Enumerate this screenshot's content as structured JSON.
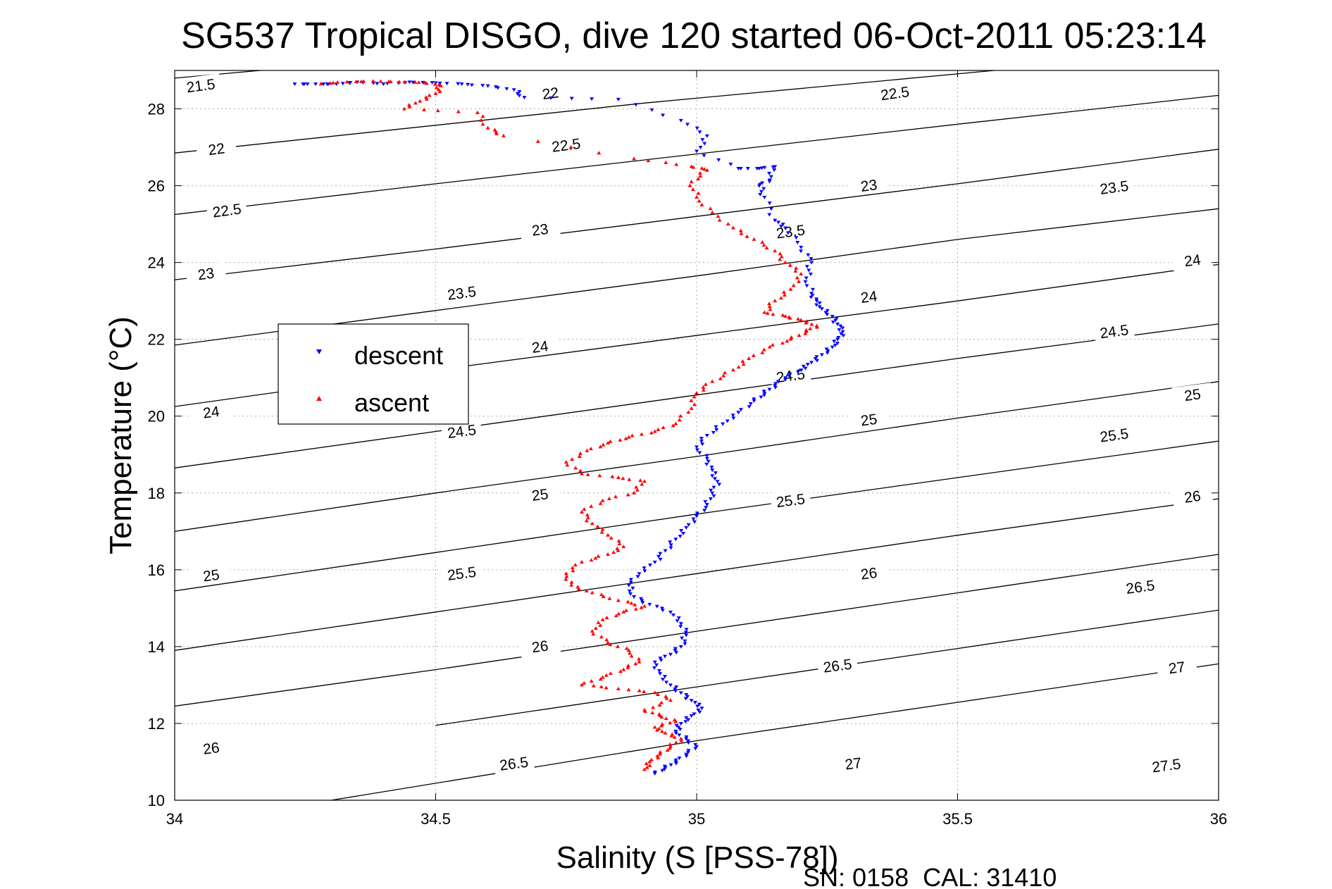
{
  "chart_data": {
    "type": "scatter",
    "title": "SG537 Tropical DISGO, dive 120 started 06-Oct-2011 05:23:14",
    "xlabel": "Salinity (S [PSS-78])",
    "ylabel": "Temperature (°C)",
    "xlim": [
      34,
      36
    ],
    "ylim": [
      10,
      29
    ],
    "xticks": [
      "34",
      "34.5",
      "35",
      "35.5",
      "36"
    ],
    "yticks": [
      "10",
      "12",
      "14",
      "16",
      "18",
      "20",
      "22",
      "24",
      "26",
      "28"
    ],
    "grid": true,
    "legend_position": "left",
    "footer": "SN: 0158  CAL: 31410",
    "colors": {
      "descent": "#0000ff",
      "ascent": "#ff0000",
      "contour": "#000000",
      "grid": "#aaaaaa"
    },
    "contours": [
      {
        "label": "21.5",
        "points": [
          [
            34.0,
            28.8
          ],
          [
            34.9,
            29.9
          ]
        ],
        "label_at": [
          [
            34.05,
            28.6
          ]
        ]
      },
      {
        "label": "22",
        "points": [
          [
            34.0,
            26.85
          ],
          [
            34.9,
            28.15
          ],
          [
            35.57,
            29.0
          ]
        ],
        "label_at": [
          [
            34.08,
            26.95
          ],
          [
            34.72,
            28.4
          ]
        ]
      },
      {
        "label": "22.5",
        "points": [
          [
            34.0,
            25.25
          ],
          [
            34.5,
            26.05
          ],
          [
            35.5,
            27.6
          ],
          [
            36.0,
            28.35
          ]
        ],
        "label_at": [
          [
            34.1,
            25.35
          ],
          [
            34.75,
            27.05
          ],
          [
            35.38,
            28.4
          ]
        ]
      },
      {
        "label": "23",
        "points": [
          [
            34.0,
            23.55
          ],
          [
            34.5,
            24.35
          ],
          [
            35.0,
            25.2
          ],
          [
            35.5,
            26.05
          ],
          [
            36.0,
            26.95
          ]
        ],
        "label_at": [
          [
            34.06,
            23.7
          ],
          [
            34.7,
            24.85
          ],
          [
            35.33,
            26.0
          ]
        ]
      },
      {
        "label": "23.5",
        "points": [
          [
            34.0,
            21.85
          ],
          [
            34.5,
            22.75
          ],
          [
            35.0,
            23.65
          ],
          [
            35.5,
            24.6
          ],
          [
            36.0,
            25.4
          ]
        ],
        "label_at": [
          [
            34.55,
            23.2
          ],
          [
            35.18,
            24.8
          ],
          [
            35.8,
            25.95
          ]
        ]
      },
      {
        "label": "24",
        "points": [
          [
            34.0,
            20.25
          ],
          [
            34.5,
            21.2
          ],
          [
            35.0,
            22.1
          ],
          [
            35.5,
            23.0
          ],
          [
            36.0,
            23.95
          ]
        ],
        "label_at": [
          [
            34.07,
            20.1
          ],
          [
            34.7,
            21.8
          ],
          [
            35.33,
            23.1
          ],
          [
            35.95,
            24.05
          ]
        ]
      },
      {
        "label": "24.5",
        "points": [
          [
            34.0,
            18.65
          ],
          [
            34.5,
            19.6
          ],
          [
            35.0,
            20.55
          ],
          [
            35.5,
            21.5
          ],
          [
            36.0,
            22.4
          ]
        ],
        "label_at": [
          [
            34.55,
            19.6
          ],
          [
            35.18,
            21.05
          ],
          [
            35.8,
            22.2
          ]
        ]
      },
      {
        "label": "25",
        "points": [
          [
            34.0,
            17.0
          ],
          [
            34.5,
            18.0
          ],
          [
            35.0,
            18.95
          ],
          [
            35.5,
            19.95
          ],
          [
            36.0,
            20.9
          ]
        ],
        "label_at": [
          [
            34.07,
            15.85
          ],
          [
            34.7,
            17.95
          ],
          [
            35.33,
            19.9
          ],
          [
            35.95,
            20.55
          ]
        ]
      },
      {
        "label": "25.5",
        "points": [
          [
            34.0,
            15.45
          ],
          [
            34.5,
            16.45
          ],
          [
            35.0,
            17.45
          ],
          [
            35.5,
            18.4
          ],
          [
            36.0,
            19.35
          ]
        ],
        "label_at": [
          [
            34.55,
            15.9
          ],
          [
            35.18,
            17.8
          ],
          [
            35.8,
            19.5
          ]
        ]
      },
      {
        "label": "26",
        "points": [
          [
            34.0,
            13.9
          ],
          [
            34.5,
            14.9
          ],
          [
            35.0,
            15.9
          ],
          [
            35.5,
            16.9
          ],
          [
            36.0,
            17.85
          ]
        ],
        "label_at": [
          [
            34.07,
            11.35
          ],
          [
            34.7,
            14.0
          ],
          [
            35.33,
            15.9
          ],
          [
            35.95,
            17.9
          ]
        ]
      },
      {
        "label": "26.5",
        "points": [
          [
            34.0,
            12.45
          ],
          [
            34.5,
            13.4
          ],
          [
            35.0,
            14.4
          ],
          [
            35.5,
            15.4
          ],
          [
            36.0,
            16.4
          ]
        ],
        "label_at": [
          [
            34.65,
            10.95
          ],
          [
            35.27,
            13.5
          ],
          [
            35.85,
            15.55
          ]
        ]
      },
      {
        "label": "27",
        "points": [
          [
            34.5,
            11.95
          ],
          [
            35.0,
            12.95
          ],
          [
            35.5,
            13.95
          ],
          [
            36.0,
            14.95
          ]
        ],
        "label_at": [
          [
            35.3,
            10.95
          ],
          [
            35.92,
            13.45
          ]
        ]
      },
      {
        "label": "27.5",
        "points": [
          [
            34.3,
            10.0
          ],
          [
            35.0,
            11.55
          ],
          [
            35.5,
            12.55
          ],
          [
            36.0,
            13.55
          ]
        ],
        "label_at": [
          [
            35.9,
            10.9
          ]
        ]
      }
    ],
    "series": [
      {
        "name": "descent",
        "points": [
          [
            34.23,
            28.65
          ],
          [
            34.27,
            28.65
          ],
          [
            34.31,
            28.65
          ],
          [
            34.35,
            28.7
          ],
          [
            34.4,
            28.65
          ],
          [
            34.45,
            28.7
          ],
          [
            34.5,
            28.68
          ],
          [
            34.55,
            28.65
          ],
          [
            34.6,
            28.6
          ],
          [
            34.65,
            28.5
          ],
          [
            34.67,
            28.3
          ],
          [
            34.85,
            28.25
          ],
          [
            34.97,
            27.7
          ],
          [
            35.02,
            27.3
          ],
          [
            35.0,
            26.9
          ],
          [
            35.08,
            26.45
          ],
          [
            35.12,
            26.45
          ],
          [
            35.15,
            26.5
          ],
          [
            35.14,
            26.15
          ],
          [
            35.12,
            26.0
          ],
          [
            35.13,
            25.7
          ],
          [
            35.15,
            25.1
          ],
          [
            35.17,
            24.9
          ],
          [
            35.2,
            24.4
          ],
          [
            35.22,
            24.0
          ],
          [
            35.21,
            23.6
          ],
          [
            35.22,
            23.2
          ],
          [
            35.23,
            23.0
          ],
          [
            35.24,
            22.8
          ],
          [
            35.26,
            22.6
          ],
          [
            35.27,
            22.4
          ],
          [
            35.28,
            22.2
          ],
          [
            35.27,
            22.0
          ],
          [
            35.26,
            21.8
          ],
          [
            35.24,
            21.6
          ],
          [
            35.22,
            21.4
          ],
          [
            35.2,
            21.2
          ],
          [
            35.17,
            21.0
          ],
          [
            35.15,
            20.8
          ],
          [
            35.13,
            20.6
          ],
          [
            35.11,
            20.4
          ],
          [
            35.08,
            20.1
          ],
          [
            35.05,
            19.8
          ],
          [
            35.02,
            19.5
          ],
          [
            35.0,
            19.2
          ],
          [
            35.02,
            18.9
          ],
          [
            35.03,
            18.6
          ],
          [
            35.04,
            18.3
          ],
          [
            35.03,
            18.0
          ],
          [
            35.02,
            17.7
          ],
          [
            35.0,
            17.4
          ],
          [
            34.98,
            17.1
          ],
          [
            34.96,
            16.8
          ],
          [
            34.94,
            16.5
          ],
          [
            34.92,
            16.2
          ],
          [
            34.89,
            15.9
          ],
          [
            34.87,
            15.6
          ],
          [
            34.88,
            15.3
          ],
          [
            34.91,
            15.1
          ],
          [
            34.95,
            14.9
          ],
          [
            34.97,
            14.6
          ],
          [
            34.98,
            14.3
          ],
          [
            34.97,
            14.0
          ],
          [
            34.95,
            13.8
          ],
          [
            34.92,
            13.6
          ],
          [
            34.93,
            13.3
          ],
          [
            34.95,
            13.0
          ],
          [
            34.97,
            12.8
          ],
          [
            34.99,
            12.6
          ],
          [
            35.01,
            12.4
          ],
          [
            34.99,
            12.2
          ],
          [
            34.97,
            12.0
          ],
          [
            34.96,
            11.8
          ],
          [
            34.98,
            11.6
          ],
          [
            35.0,
            11.4
          ],
          [
            34.98,
            11.2
          ],
          [
            34.96,
            11.0
          ],
          [
            34.94,
            10.85
          ],
          [
            34.92,
            10.7
          ]
        ]
      },
      {
        "name": "ascent",
        "points": [
          [
            34.28,
            28.65
          ],
          [
            34.33,
            28.7
          ],
          [
            34.38,
            28.72
          ],
          [
            34.43,
            28.7
          ],
          [
            34.48,
            28.68
          ],
          [
            34.51,
            28.6
          ],
          [
            34.5,
            28.4
          ],
          [
            34.47,
            28.2
          ],
          [
            34.44,
            28.0
          ],
          [
            34.58,
            27.9
          ],
          [
            34.6,
            27.5
          ],
          [
            34.63,
            27.3
          ],
          [
            34.88,
            26.7
          ],
          [
            34.99,
            26.5
          ],
          [
            35.02,
            26.4
          ],
          [
            34.99,
            26.1
          ],
          [
            35.0,
            25.7
          ],
          [
            35.03,
            25.3
          ],
          [
            35.07,
            24.9
          ],
          [
            35.11,
            24.6
          ],
          [
            35.15,
            24.3
          ],
          [
            35.17,
            24.0
          ],
          [
            35.2,
            23.7
          ],
          [
            35.18,
            23.3
          ],
          [
            35.15,
            23.0
          ],
          [
            35.13,
            22.7
          ],
          [
            35.17,
            22.6
          ],
          [
            35.2,
            22.5
          ],
          [
            35.23,
            22.35
          ],
          [
            35.21,
            22.2
          ],
          [
            35.18,
            22.0
          ],
          [
            35.14,
            21.8
          ],
          [
            35.1,
            21.5
          ],
          [
            35.07,
            21.2
          ],
          [
            35.03,
            20.9
          ],
          [
            35.0,
            20.6
          ],
          [
            34.99,
            20.2
          ],
          [
            34.96,
            19.8
          ],
          [
            34.92,
            19.6
          ],
          [
            34.87,
            19.45
          ],
          [
            34.83,
            19.3
          ],
          [
            34.79,
            19.1
          ],
          [
            34.75,
            18.8
          ],
          [
            34.78,
            18.5
          ],
          [
            34.85,
            18.4
          ],
          [
            34.9,
            18.3
          ],
          [
            34.88,
            18.0
          ],
          [
            34.82,
            17.8
          ],
          [
            34.78,
            17.5
          ],
          [
            34.8,
            17.2
          ],
          [
            34.83,
            16.9
          ],
          [
            34.86,
            16.6
          ],
          [
            34.83,
            16.4
          ],
          [
            34.78,
            16.2
          ],
          [
            34.75,
            15.9
          ],
          [
            34.76,
            15.6
          ],
          [
            34.8,
            15.4
          ],
          [
            34.85,
            15.2
          ],
          [
            34.9,
            15.05
          ],
          [
            34.86,
            14.9
          ],
          [
            34.82,
            14.7
          ],
          [
            34.8,
            14.4
          ],
          [
            34.83,
            14.1
          ],
          [
            34.87,
            13.9
          ],
          [
            34.89,
            13.6
          ],
          [
            34.86,
            13.4
          ],
          [
            34.82,
            13.2
          ],
          [
            34.78,
            13.0
          ],
          [
            34.85,
            12.9
          ],
          [
            34.92,
            12.8
          ],
          [
            34.95,
            12.6
          ],
          [
            34.9,
            12.35
          ],
          [
            34.93,
            12.2
          ],
          [
            34.96,
            12.05
          ],
          [
            34.92,
            11.9
          ],
          [
            34.94,
            11.75
          ],
          [
            34.97,
            11.6
          ],
          [
            34.95,
            11.4
          ],
          [
            34.93,
            11.2
          ],
          [
            34.91,
            11.0
          ],
          [
            34.9,
            10.8
          ]
        ]
      }
    ]
  }
}
